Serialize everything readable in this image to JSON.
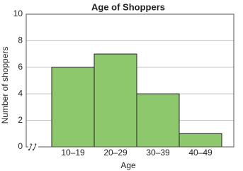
{
  "chart_data": {
    "type": "bar",
    "title": "Age of Shoppers",
    "x_label": "Age",
    "y_label": "Number of shoppers",
    "categories": [
      "10–19",
      "20–29",
      "30–39",
      "40–49"
    ],
    "values": [
      6,
      7,
      4,
      1
    ],
    "color": "#8dc86c",
    "ylim": [
      0,
      10
    ],
    "yticks": [
      0,
      2,
      4,
      6,
      8,
      10
    ],
    "grid": true
  }
}
